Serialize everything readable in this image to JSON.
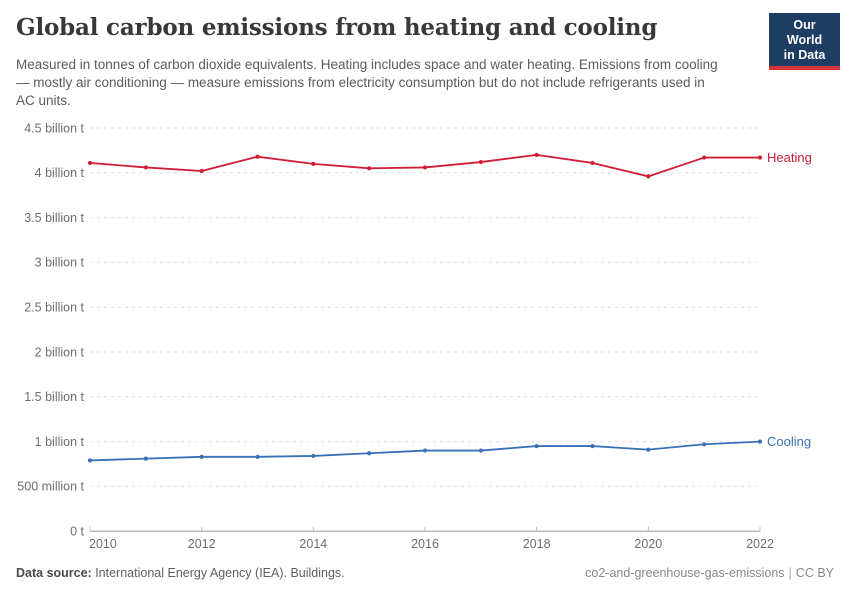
{
  "header": {
    "title": "Global carbon emissions from heating and cooling",
    "subtitle": "Measured in tonnes of carbon dioxide equivalents. Heating includes space and water heating. Emissions from cooling — mostly air conditioning — measure emissions from electricity consumption but do not include refrigerants used in AC units.",
    "logo": {
      "line1": "Our World",
      "line2": "in Data",
      "bg_color": "#1d3d63",
      "bar_color": "#d8323d"
    }
  },
  "chart_data": {
    "type": "line",
    "title": "Global carbon emissions from heating and cooling",
    "unit": "tonnes of CO2 equivalents",
    "x": [
      2010,
      2011,
      2012,
      2013,
      2014,
      2015,
      2016,
      2017,
      2018,
      2019,
      2020,
      2021,
      2022
    ],
    "xlim": [
      2010,
      2022
    ],
    "ylim": [
      0,
      4.5
    ],
    "y_unit_scale": "billion t",
    "grid": "horizontal-dashed",
    "legend_position": "right-end-of-line",
    "series": [
      {
        "name": "Heating",
        "color": "#cf1d35",
        "values": [
          4.11,
          4.06,
          4.02,
          4.18,
          4.1,
          4.05,
          4.06,
          4.12,
          4.2,
          4.11,
          3.96,
          4.17,
          4.17
        ]
      },
      {
        "name": "Cooling",
        "color": "#3970b7",
        "values": [
          0.79,
          0.81,
          0.83,
          0.83,
          0.84,
          0.87,
          0.9,
          0.9,
          0.95,
          0.95,
          0.91,
          0.97,
          1.0
        ]
      }
    ],
    "yticks": [
      {
        "value": 4.5,
        "label": "4.5 billion t"
      },
      {
        "value": 4.0,
        "label": "4 billion t"
      },
      {
        "value": 3.5,
        "label": "3.5 billion t"
      },
      {
        "value": 3.0,
        "label": "3 billion t"
      },
      {
        "value": 2.5,
        "label": "2.5 billion t"
      },
      {
        "value": 2.0,
        "label": "2 billion t"
      },
      {
        "value": 1.5,
        "label": "1.5 billion t"
      },
      {
        "value": 1.0,
        "label": "1 billion t"
      },
      {
        "value": 0.5,
        "label": "500 million t"
      },
      {
        "value": 0,
        "label": "0 t"
      }
    ],
    "xticks": [
      2010,
      2012,
      2014,
      2016,
      2018,
      2020,
      2022
    ]
  },
  "footer": {
    "source_label": "Data source:",
    "source_text": " International Energy Agency (IEA). Buildings.",
    "slug": "co2-and-greenhouse-gas-emissions",
    "separator": "|",
    "license": "CC BY"
  }
}
